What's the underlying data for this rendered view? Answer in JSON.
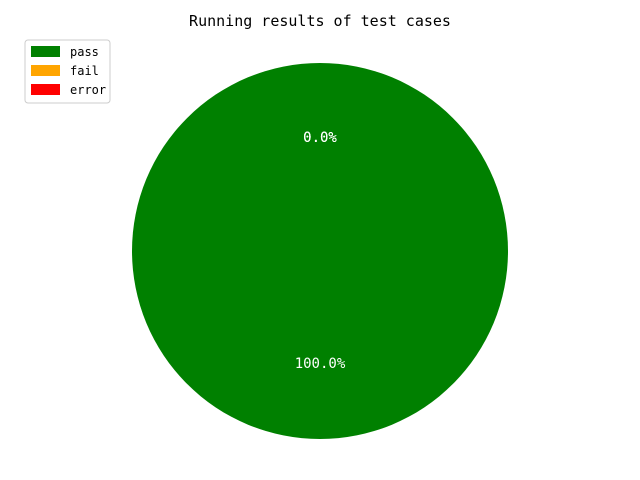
{
  "chart_data": {
    "type": "pie",
    "title": "Running results of test cases",
    "categories": [
      "pass",
      "fail",
      "error"
    ],
    "values": [
      100,
      0,
      0
    ],
    "colors": [
      "#008000",
      "#ffa500",
      "#ff0000"
    ],
    "value_labels": [
      "100.0%",
      "0.0%",
      "0.0%"
    ],
    "legend": {
      "placement": "top-left",
      "entries": [
        "pass",
        "fail",
        "error"
      ]
    }
  }
}
